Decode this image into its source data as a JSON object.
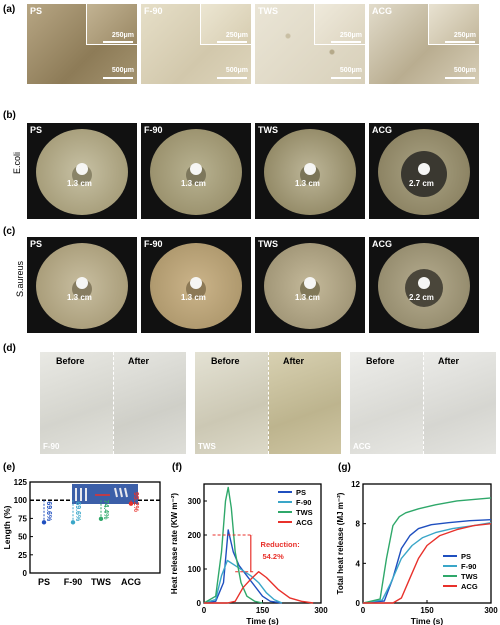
{
  "panel_labels": {
    "a": "(a)",
    "b": "(b)",
    "c": "(c)",
    "d": "(d)",
    "e": "(e)",
    "f": "(f)",
    "g": "(g)"
  },
  "samples": [
    "PS",
    "F-90",
    "TWS",
    "ACG"
  ],
  "micrograph": {
    "inset_scale": "250μm",
    "main_scale": "500μm"
  },
  "ecoli": {
    "label": "E.coli",
    "values": [
      "1.3 cm",
      "1.3 cm",
      "1.3 cm",
      "2.7 cm"
    ]
  },
  "saureus": {
    "label": "S.aureus",
    "values": [
      "1.3 cm",
      "1.3 cm",
      "1.3 cm",
      "2.2 cm"
    ]
  },
  "fabric": {
    "before": "Before",
    "after": "After",
    "names": [
      "F-90",
      "TWS",
      "ACG"
    ]
  },
  "colors": {
    "PS": "#1f4fbf",
    "F-90": "#3aa6c8",
    "TWS": "#2fa86a",
    "ACG": "#e8312b"
  },
  "chart_data": [
    {
      "id": "e",
      "type": "scatter",
      "ylabel": "Length (%)",
      "ylim": [
        0,
        125
      ],
      "categories": [
        "PS",
        "F-90",
        "TWS",
        "ACG"
      ],
      "values": [
        69.6,
        69.6,
        74.4,
        95.2
      ],
      "value_labels": [
        "69.6%",
        "69.6%",
        "74.4%",
        "95.2%"
      ],
      "reference": 100
    },
    {
      "id": "f",
      "type": "line",
      "xlabel": "Time (s)",
      "ylabel": "Heat release rate (KW m⁻²)",
      "xlim": [
        0,
        300
      ],
      "ylim": [
        0,
        350
      ],
      "xticks": [
        0,
        150,
        300
      ],
      "yticks": [
        0,
        100,
        200,
        300
      ],
      "annotation": {
        "label": "Reduction:",
        "value": "54.2%"
      },
      "series": [
        {
          "name": "PS",
          "x": [
            0,
            30,
            50,
            62,
            75,
            90,
            110,
            130,
            150,
            170,
            200
          ],
          "y": [
            0,
            5,
            60,
            215,
            150,
            110,
            80,
            50,
            20,
            5,
            0
          ]
        },
        {
          "name": "F-90",
          "x": [
            0,
            30,
            45,
            60,
            80,
            100,
            120,
            140,
            160,
            180,
            200
          ],
          "y": [
            0,
            10,
            80,
            125,
            110,
            95,
            80,
            60,
            30,
            10,
            0
          ]
        },
        {
          "name": "TWS",
          "x": [
            0,
            30,
            45,
            55,
            62,
            70,
            80,
            95,
            110,
            130,
            150
          ],
          "y": [
            0,
            20,
            150,
            300,
            340,
            280,
            150,
            60,
            20,
            5,
            0
          ]
        },
        {
          "name": "ACG",
          "x": [
            0,
            60,
            80,
            100,
            120,
            140,
            160,
            190,
            220,
            250,
            280
          ],
          "y": [
            0,
            0,
            5,
            45,
            70,
            92,
            75,
            40,
            15,
            5,
            0
          ]
        }
      ]
    },
    {
      "id": "g",
      "type": "line",
      "xlabel": "Time (s)",
      "ylabel": "Total heat release (MJ m⁻²)",
      "xlim": [
        0,
        300
      ],
      "ylim": [
        0,
        12
      ],
      "xticks": [
        0,
        150,
        300
      ],
      "yticks": [
        0,
        4,
        8,
        12
      ],
      "series": [
        {
          "name": "PS",
          "x": [
            0,
            50,
            70,
            90,
            110,
            130,
            160,
            200,
            250,
            300
          ],
          "y": [
            0,
            0.2,
            2.5,
            5.5,
            6.8,
            7.5,
            7.9,
            8.1,
            8.3,
            8.4
          ]
        },
        {
          "name": "F-90",
          "x": [
            0,
            45,
            65,
            90,
            115,
            140,
            170,
            210,
            260,
            300
          ],
          "y": [
            0,
            0.3,
            2.0,
            4.5,
            5.8,
            6.6,
            7.1,
            7.5,
            7.8,
            8.1
          ]
        },
        {
          "name": "TWS",
          "x": [
            0,
            40,
            55,
            70,
            85,
            100,
            130,
            170,
            220,
            300
          ],
          "y": [
            0,
            0.4,
            4.5,
            7.8,
            8.7,
            9.1,
            9.5,
            9.9,
            10.3,
            10.6
          ]
        },
        {
          "name": "ACG",
          "x": [
            0,
            70,
            90,
            110,
            130,
            150,
            180,
            220,
            260,
            300
          ],
          "y": [
            0,
            0,
            0.5,
            2.5,
            4.5,
            5.8,
            6.8,
            7.4,
            7.8,
            8.0
          ]
        }
      ]
    }
  ]
}
